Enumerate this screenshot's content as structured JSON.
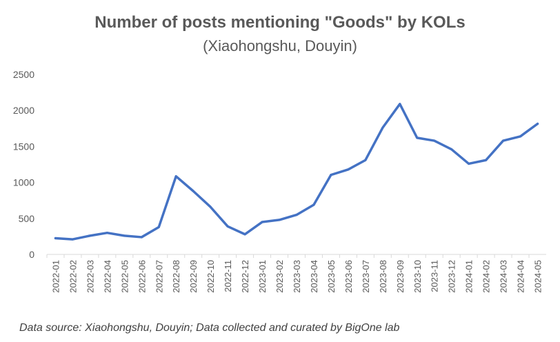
{
  "chart_data": {
    "type": "line",
    "title": "Number of posts mentioning \"Goods\" by KOLs",
    "subtitle": "(Xiaohongshu, Douyin)",
    "xlabel": "",
    "ylabel": "",
    "ylim": [
      0,
      2500
    ],
    "yticks": [
      "0",
      "500",
      "1000",
      "1500",
      "2000",
      "2500"
    ],
    "grid": false,
    "legend": "none",
    "categories": [
      "2022-01",
      "2022-02",
      "2022-03",
      "2022-04",
      "2022-05",
      "2022-06",
      "2022-07",
      "2022-08",
      "2022-09",
      "2022-10",
      "2022-11",
      "2022-12",
      "2023-01",
      "2023-02",
      "2023-03",
      "2023-04",
      "2023-05",
      "2023-06",
      "2023-07",
      "2023-08",
      "2023-09",
      "2023-10",
      "2023-11",
      "2023-12",
      "2024-01",
      "2024-02",
      "2024-03",
      "2024-04",
      "2024-05"
    ],
    "series": [
      {
        "color": "#4472C4",
        "values": [
          225,
          210,
          260,
          300,
          260,
          240,
          380,
          1085,
          880,
          660,
          390,
          280,
          450,
          480,
          550,
          690,
          1105,
          1180,
          1310,
          1760,
          2090,
          1620,
          1580,
          1460,
          1260,
          1310,
          1580,
          1640,
          1815
        ]
      }
    ],
    "source": "Data source: Xiaohongshu, Douyin; Data collected and curated by BigOne lab"
  }
}
